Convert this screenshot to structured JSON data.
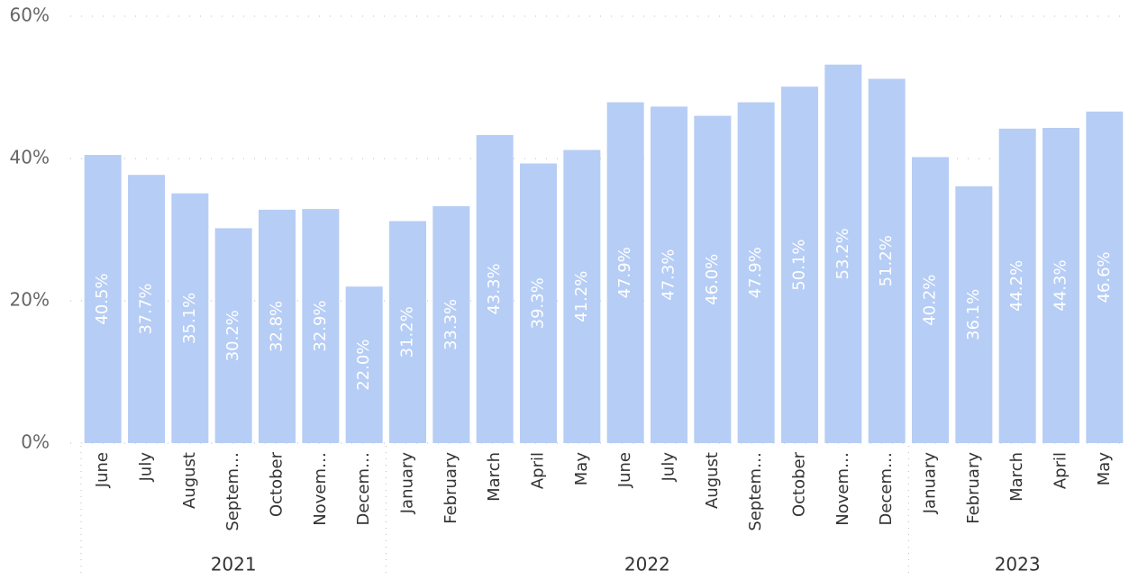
{
  "chart_data": {
    "type": "bar",
    "color": "#b6cdf5",
    "ylim": [
      0,
      60
    ],
    "yticks": [
      {
        "value": 0,
        "label": "0%"
      },
      {
        "value": 20,
        "label": "20%"
      },
      {
        "value": 40,
        "label": "40%"
      },
      {
        "value": 60,
        "label": "60%"
      }
    ],
    "grid": true,
    "groups": [
      {
        "name": "2021",
        "categories": [
          "June",
          "July",
          "August",
          "Septem…",
          "October",
          "Novem…",
          "Decem…"
        ],
        "values": [
          40.5,
          37.7,
          35.1,
          30.2,
          32.8,
          32.9,
          22.0
        ],
        "value_labels": [
          "40.5%",
          "37.7%",
          "35.1%",
          "30.2%",
          "32.8%",
          "32.9%",
          "22.0%"
        ]
      },
      {
        "name": "2022",
        "categories": [
          "January",
          "February",
          "March",
          "April",
          "May",
          "June",
          "July",
          "August",
          "Septem…",
          "October",
          "Novem…",
          "Decem…"
        ],
        "values": [
          31.2,
          33.3,
          43.3,
          39.3,
          41.2,
          47.9,
          47.3,
          46.0,
          47.9,
          50.1,
          53.2,
          51.2
        ],
        "value_labels": [
          "31.2%",
          "33.3%",
          "43.3%",
          "39.3%",
          "41.2%",
          "47.9%",
          "47.3%",
          "46.0%",
          "47.9%",
          "50.1%",
          "53.2%",
          "51.2%"
        ]
      },
      {
        "name": "2023",
        "categories": [
          "January",
          "February",
          "March",
          "April",
          "May"
        ],
        "values": [
          40.2,
          36.1,
          44.2,
          44.3,
          46.6
        ],
        "value_labels": [
          "40.2%",
          "36.1%",
          "44.2%",
          "44.3%",
          "46.6%"
        ]
      }
    ]
  }
}
